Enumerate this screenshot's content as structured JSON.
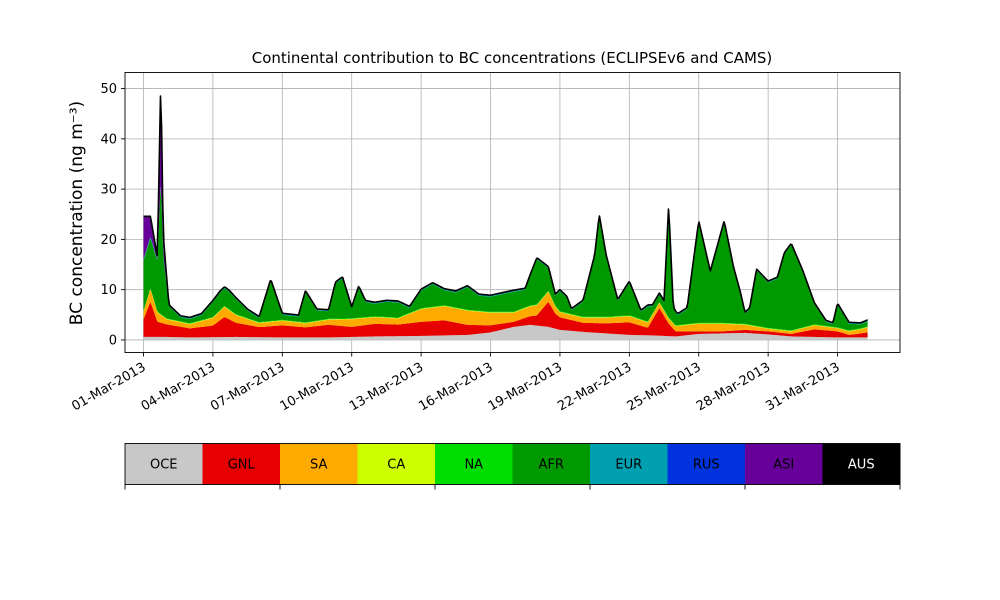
{
  "chart_data": {
    "type": "area",
    "stacked": true,
    "title": "Continental contribution to BC concentrations (ECLIPSEv6 and CAMS)",
    "ylabel": "BC concentration (ng m⁻³)",
    "xlabel": "",
    "ylim": [
      -2.5,
      53.2
    ],
    "yticks": [
      0,
      10,
      20,
      30,
      40,
      50
    ],
    "xlim": [
      -0.8,
      32.7
    ],
    "xticks": [
      {
        "day": 0,
        "label": "01-Mar-2013"
      },
      {
        "day": 3,
        "label": "04-Mar-2013"
      },
      {
        "day": 6,
        "label": "07-Mar-2013"
      },
      {
        "day": 9,
        "label": "10-Mar-2013"
      },
      {
        "day": 12,
        "label": "13-Mar-2013"
      },
      {
        "day": 15,
        "label": "16-Mar-2013"
      },
      {
        "day": 18,
        "label": "19-Mar-2013"
      },
      {
        "day": 21,
        "label": "22-Mar-2013"
      },
      {
        "day": 24,
        "label": "25-Mar-2013"
      },
      {
        "day": 27,
        "label": "28-Mar-2013"
      },
      {
        "day": 30,
        "label": "31-Mar-2013"
      }
    ],
    "grid": true,
    "total_line_color": "#000000",
    "series": [
      {
        "name": "OCE",
        "color": "#c8c8c8",
        "pts": [
          [
            0,
            0.6
          ],
          [
            1,
            0.6
          ],
          [
            2,
            0.5
          ],
          [
            4,
            0.6
          ],
          [
            6,
            0.5
          ],
          [
            8,
            0.5
          ],
          [
            10,
            0.7
          ],
          [
            12,
            0.8
          ],
          [
            14,
            1.0
          ],
          [
            15,
            1.5
          ],
          [
            16,
            2.6
          ],
          [
            16.7,
            3.0
          ],
          [
            17.5,
            2.6
          ],
          [
            18,
            2.0
          ],
          [
            19,
            1.6
          ],
          [
            20,
            1.3
          ],
          [
            21,
            1.0
          ],
          [
            22,
            0.9
          ],
          [
            22.5,
            0.8
          ],
          [
            23,
            0.7
          ],
          [
            24,
            1.2
          ],
          [
            25,
            1.3
          ],
          [
            26,
            1.4
          ],
          [
            27,
            1.1
          ],
          [
            28,
            0.7
          ],
          [
            29,
            0.6
          ],
          [
            30,
            0.5
          ],
          [
            31,
            0.5
          ],
          [
            31.3,
            0.5
          ]
        ]
      },
      {
        "name": "GNL",
        "color": "#e60000",
        "pts": [
          [
            0,
            3.5
          ],
          [
            0.3,
            7.0
          ],
          [
            0.6,
            3.0
          ],
          [
            1,
            2.5
          ],
          [
            2,
            1.8
          ],
          [
            3,
            2.3
          ],
          [
            3.5,
            4.0
          ],
          [
            4,
            2.8
          ],
          [
            5,
            2.0
          ],
          [
            6,
            2.4
          ],
          [
            7,
            2.0
          ],
          [
            8,
            2.5
          ],
          [
            9,
            2.0
          ],
          [
            10,
            2.5
          ],
          [
            11,
            2.3
          ],
          [
            12,
            2.8
          ],
          [
            13,
            3.0
          ],
          [
            14,
            2.0
          ],
          [
            15,
            1.4
          ],
          [
            16,
            1.0
          ],
          [
            17,
            2.0
          ],
          [
            17.5,
            5.0
          ],
          [
            17.8,
            3.0
          ],
          [
            18,
            2.5
          ],
          [
            19,
            1.8
          ],
          [
            20,
            2.0
          ],
          [
            21,
            2.5
          ],
          [
            21.8,
            1.5
          ],
          [
            22.3,
            5.5
          ],
          [
            22.7,
            2.5
          ],
          [
            23,
            1.0
          ],
          [
            24,
            0.5
          ],
          [
            25,
            0.4
          ],
          [
            26,
            0.6
          ],
          [
            27,
            0.6
          ],
          [
            28,
            0.5
          ],
          [
            29,
            1.5
          ],
          [
            30,
            1.2
          ],
          [
            30.5,
            0.5
          ],
          [
            31,
            0.8
          ],
          [
            31.3,
            1.0
          ]
        ]
      },
      {
        "name": "SA",
        "color": "#ffaa00",
        "pts": [
          [
            0,
            1.5
          ],
          [
            0.3,
            2.5
          ],
          [
            1,
            1.0
          ],
          [
            2,
            0.8
          ],
          [
            3,
            1.5
          ],
          [
            3.5,
            2.0
          ],
          [
            4,
            1.5
          ],
          [
            5,
            0.8
          ],
          [
            6,
            0.9
          ],
          [
            7,
            0.8
          ],
          [
            8,
            1.0
          ],
          [
            9,
            1.5
          ],
          [
            10,
            1.3
          ],
          [
            11,
            1.2
          ],
          [
            12,
            2.5
          ],
          [
            13,
            2.8
          ],
          [
            14,
            2.8
          ],
          [
            15,
            2.5
          ],
          [
            16,
            1.8
          ],
          [
            17,
            2.0
          ],
          [
            17.5,
            2.0
          ],
          [
            18,
            1.0
          ],
          [
            19,
            1.0
          ],
          [
            20,
            1.1
          ],
          [
            21,
            1.2
          ],
          [
            22,
            1.0
          ],
          [
            23,
            1.0
          ],
          [
            24,
            1.5
          ],
          [
            25,
            1.5
          ],
          [
            26,
            1.0
          ],
          [
            27,
            0.5
          ],
          [
            28,
            0.5
          ],
          [
            29,
            0.8
          ],
          [
            30,
            0.6
          ],
          [
            31,
            0.8
          ],
          [
            31.3,
            1.0
          ]
        ]
      },
      {
        "name": "CA",
        "color": "#ccff00",
        "pts": [
          [
            0,
            0.1
          ],
          [
            31.3,
            0.1
          ]
        ]
      },
      {
        "name": "NA",
        "color": "#00dd00",
        "pts": [
          [
            0,
            0.1
          ],
          [
            31.3,
            0.1
          ]
        ]
      },
      {
        "name": "AFR",
        "color": "#009900",
        "pts": [
          [
            0,
            10
          ],
          [
            0.3,
            10
          ],
          [
            0.6,
            10
          ],
          [
            0.75,
            27
          ],
          [
            0.85,
            12
          ],
          [
            1.1,
            2.5
          ],
          [
            1.6,
            0.8
          ],
          [
            2.5,
            1.0
          ],
          [
            3,
            3.0
          ],
          [
            3.3,
            3.5
          ],
          [
            3.7,
            3.5
          ],
          [
            4,
            3.0
          ],
          [
            4.5,
            1.5
          ],
          [
            5,
            0.8
          ],
          [
            5.5,
            8.0
          ],
          [
            6,
            1.0
          ],
          [
            6.7,
            1.0
          ],
          [
            7,
            6.0
          ],
          [
            7.5,
            2.0
          ],
          [
            8,
            1.5
          ],
          [
            8.3,
            7.0
          ],
          [
            8.6,
            8.0
          ],
          [
            9,
            2.0
          ],
          [
            9.3,
            6.0
          ],
          [
            9.6,
            3.0
          ],
          [
            10,
            2.5
          ],
          [
            10.5,
            3.0
          ],
          [
            11,
            3.0
          ],
          [
            11.5,
            1.0
          ],
          [
            12,
            3.5
          ],
          [
            12.5,
            4.5
          ],
          [
            13,
            3.0
          ],
          [
            13.5,
            3.0
          ],
          [
            14,
            4.5
          ],
          [
            14.5,
            3.0
          ],
          [
            15,
            3.0
          ],
          [
            15.5,
            3.5
          ],
          [
            16,
            4.0
          ],
          [
            16.5,
            3.5
          ],
          [
            17,
            9.0
          ],
          [
            17.5,
            4.5
          ],
          [
            17.8,
            2.0
          ],
          [
            18,
            4.0
          ],
          [
            18.3,
            3.0
          ],
          [
            18.5,
            0.8
          ],
          [
            19,
            3.0
          ],
          [
            19.5,
            12.0
          ],
          [
            19.7,
            20.0
          ],
          [
            20,
            12.0
          ],
          [
            20.5,
            3.0
          ],
          [
            21,
            6.5
          ],
          [
            21.5,
            1.5
          ],
          [
            21.8,
            3.0
          ],
          [
            22,
            1.5
          ],
          [
            22.5,
            1.5
          ],
          [
            22.7,
            22.0
          ],
          [
            22.9,
            3.0
          ],
          [
            23.1,
            2.0
          ],
          [
            23.5,
            3.0
          ],
          [
            24,
            20.0
          ],
          [
            24.5,
            10.0
          ],
          [
            24.8,
            15.0
          ],
          [
            25.1,
            20.0
          ],
          [
            25.5,
            11.0
          ],
          [
            25.8,
            6.0
          ],
          [
            26,
            2.0
          ],
          [
            26.2,
            3.0
          ],
          [
            26.5,
            11.0
          ],
          [
            27,
            9.0
          ],
          [
            27.4,
            10.0
          ],
          [
            27.7,
            15.0
          ],
          [
            28,
            17.0
          ],
          [
            28.5,
            11.0
          ],
          [
            29,
            4.0
          ],
          [
            29.5,
            0.8
          ],
          [
            29.8,
            0.5
          ],
          [
            30,
            4.5
          ],
          [
            30.5,
            1.3
          ],
          [
            31,
            0.8
          ],
          [
            31.3,
            1.0
          ]
        ]
      },
      {
        "name": "EUR",
        "color": "#00a0b0",
        "pts": [
          [
            0,
            0.2
          ],
          [
            31.3,
            0.2
          ]
        ]
      },
      {
        "name": "RUS",
        "color": "#0033dd",
        "pts": [
          [
            0,
            0.1
          ],
          [
            31.3,
            0.1
          ]
        ]
      },
      {
        "name": "ASI",
        "color": "#660099",
        "pts": [
          [
            0,
            8.5
          ],
          [
            0.3,
            4.0
          ],
          [
            0.6,
            0.5
          ],
          [
            0.75,
            20.0
          ],
          [
            0.85,
            4.0
          ],
          [
            1.1,
            0.0
          ],
          [
            31.3,
            0.0
          ]
        ]
      },
      {
        "name": "AUS",
        "color": "#000000",
        "pts": [
          [
            0,
            0.0
          ],
          [
            31.3,
            0.0
          ]
        ]
      }
    ],
    "legend": {
      "placement": "bottom colorbar",
      "labels": [
        "OCE",
        "GNL",
        "SA",
        "CA",
        "NA",
        "AFR",
        "EUR",
        "RUS",
        "ASI",
        "AUS"
      ]
    }
  }
}
